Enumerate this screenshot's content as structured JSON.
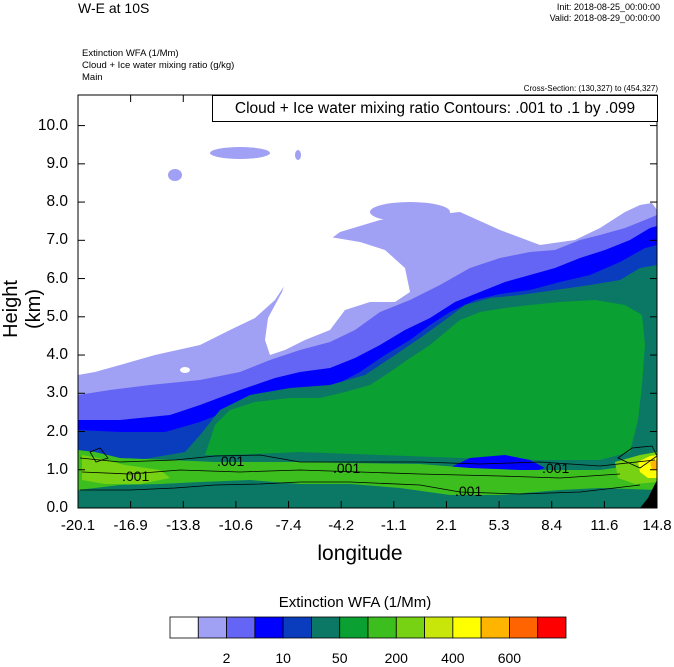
{
  "header": {
    "title": "W-E at 10S",
    "init": "Init: 2018-08-25_00:00:00",
    "valid": "Valid: 2018-08-29_00:00:00",
    "fields": [
      "Extinction WFA   (1/Mm)",
      "Cloud + Ice water mixing ratio   (g/kg)",
      "Main"
    ],
    "cross_section": "Cross-Section: (130,327) to (454,327)"
  },
  "chart_data": {
    "type": "heatmap",
    "title": "W-E at 10S",
    "xlabel": "longitude",
    "ylabel": "Height (km)",
    "x_ticks": [
      "-20.1",
      "-16.9",
      "-13.8",
      "-10.6",
      "-7.4",
      "-4.2",
      "-1.1",
      "2.1",
      "5.3",
      "8.4",
      "11.6",
      "14.8"
    ],
    "y_ticks": [
      "0.0",
      "1.0",
      "2.0",
      "3.0",
      "4.0",
      "5.0",
      "6.0",
      "7.0",
      "8.0",
      "9.0",
      "10.0"
    ],
    "xlim": [
      -20.1,
      14.8
    ],
    "ylim": [
      0,
      10.8
    ],
    "contour_info": "Cloud + Ice water mixing ratio Contours: .001 to .1 by .099",
    "contour_labels": [
      ".001",
      ".001",
      ".001",
      ".001",
      ".001"
    ],
    "colorbar": {
      "title": "Extinction WFA  (1/Mm)",
      "tick_labels": [
        "2",
        "10",
        "50",
        "200",
        "400",
        "600"
      ],
      "colors": [
        "#ffffff",
        "#a0a0f5",
        "#6464f5",
        "#0000ff",
        "#0a3cbe",
        "#0a7864",
        "#0aa032",
        "#3cbe1e",
        "#78d214",
        "#c8e60a",
        "#ffff00",
        "#ffb400",
        "#ff6400",
        "#ff0000"
      ]
    },
    "regions": [
      {
        "name": "light-blue-haze",
        "color": "#a0a0f5",
        "x_range": [
          -20.1,
          14.8
        ],
        "top_km": [
          3.4,
          7.9
        ]
      },
      {
        "name": "white-cloud",
        "color": "#ffffff",
        "x_range": [
          -11.7,
          -1.1
        ],
        "height_km": [
          4.0,
          7.1
        ]
      },
      {
        "name": "medium-blue",
        "color": "#6464f5",
        "x_range": [
          -20.1,
          14.8
        ],
        "top_km": [
          2.9,
          7.6
        ]
      },
      {
        "name": "deep-blue",
        "color": "#0000ff",
        "x_range": [
          -20.1,
          14.8
        ],
        "top_km": [
          2.2,
          7.3
        ]
      },
      {
        "name": "teal-layer",
        "color": "#0a7864",
        "x_range": [
          -20.1,
          14.8
        ],
        "top_km": [
          1.0,
          6.4
        ]
      },
      {
        "name": "green-layer",
        "color": "#0aa032",
        "x_range": [
          -12,
          14.2
        ],
        "height_km": [
          1.3,
          5.2
        ]
      },
      {
        "name": "surface-layer",
        "color": "#3cbe1e",
        "x_range": [
          -20.1,
          14.8
        ],
        "height_km": [
          0.5,
          1.5
        ]
      },
      {
        "name": "yellow-peak",
        "color": "#ffff00",
        "x_range": [
          12.5,
          14.8
        ],
        "height_km": [
          0.7,
          1.3
        ]
      }
    ]
  }
}
